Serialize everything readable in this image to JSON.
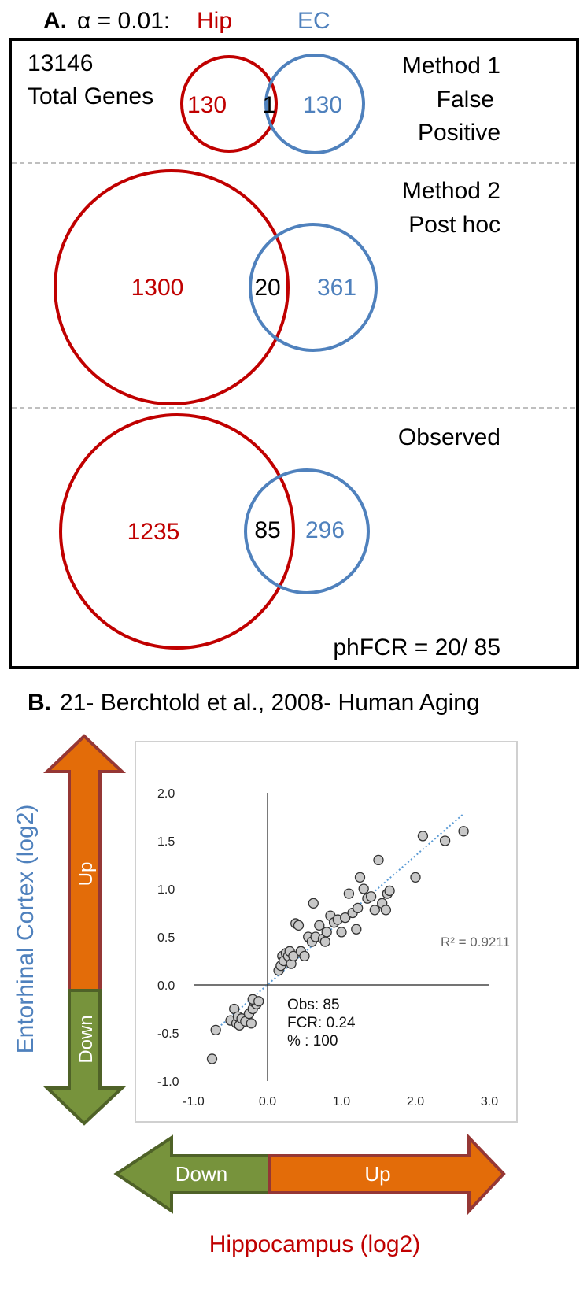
{
  "panel_a": {
    "label": "A.",
    "alpha": "α = 0.01:",
    "hip": "Hip",
    "ec": "EC",
    "total": "13146",
    "total_label": "Total Genes",
    "rows": [
      {
        "title_lines": [
          "Method 1",
          "False",
          "Positive"
        ],
        "hip_only": "130",
        "overlap": "1",
        "ec_only": "130"
      },
      {
        "title_lines": [
          "Method 2",
          "Post hoc"
        ],
        "hip_only": "1300",
        "overlap": "20",
        "ec_only": "361"
      },
      {
        "title_lines": [
          "Observed"
        ],
        "hip_only": "1235",
        "overlap": "85",
        "ec_only": "296"
      }
    ],
    "footnote": "phFCR = 20/ 85"
  },
  "panel_b": {
    "label": "B.",
    "title": "21- Berchtold et al., 2008- Human Aging",
    "y_arrow": {
      "up": "Up",
      "down": "Down",
      "label": "Entorhinal Cortex (log2)"
    },
    "x_arrow": {
      "up": "Up",
      "down": "Down",
      "label": "Hippocampus (log2)"
    }
  },
  "chart_data": {
    "type": "scatter",
    "x": [
      -0.75,
      -0.7,
      -0.5,
      -0.45,
      -0.42,
      -0.4,
      -0.38,
      -0.35,
      -0.3,
      -0.25,
      -0.22,
      -0.2,
      -0.18,
      -0.15,
      -0.2,
      -0.12,
      0.15,
      0.18,
      0.2,
      0.22,
      0.25,
      0.28,
      0.3,
      0.32,
      0.35,
      0.38,
      0.42,
      0.45,
      0.5,
      0.55,
      0.6,
      0.62,
      0.65,
      0.7,
      0.75,
      0.78,
      0.8,
      0.85,
      0.9,
      0.95,
      1.0,
      1.05,
      1.1,
      1.15,
      1.2,
      1.22,
      1.25,
      1.3,
      1.35,
      1.4,
      1.45,
      1.5,
      1.55,
      1.6,
      1.62,
      1.65,
      2.0,
      2.1,
      2.4,
      2.65
    ],
    "values": [
      -0.77,
      -0.47,
      -0.37,
      -0.25,
      -0.4,
      -0.33,
      -0.42,
      -0.35,
      -0.38,
      -0.3,
      -0.4,
      -0.25,
      -0.18,
      -0.2,
      -0.15,
      -0.17,
      0.15,
      0.2,
      0.3,
      0.25,
      0.33,
      0.3,
      0.35,
      0.22,
      0.3,
      0.64,
      0.62,
      0.35,
      0.3,
      0.5,
      0.45,
      0.85,
      0.5,
      0.62,
      0.48,
      0.45,
      0.55,
      0.72,
      0.65,
      0.68,
      0.55,
      0.7,
      0.95,
      0.75,
      0.58,
      0.8,
      1.12,
      1.0,
      0.9,
      0.92,
      0.78,
      1.3,
      0.85,
      0.78,
      0.95,
      0.98,
      1.12,
      1.55,
      1.5,
      1.6
    ],
    "color": "#c8c8c8",
    "trendline_color": "#5b9bd5",
    "xlim": [
      -1,
      3
    ],
    "ylim": [
      -1,
      2
    ],
    "xticks": [
      {
        "value": -1,
        "label": "-1.0"
      },
      {
        "value": 0,
        "label": "0.0"
      },
      {
        "value": 1,
        "label": "1.0"
      },
      {
        "value": 2,
        "label": "2.0"
      },
      {
        "value": 3,
        "label": "3.0"
      }
    ],
    "yticks": [
      {
        "value": -1,
        "label": "-1.0"
      },
      {
        "value": -0.5,
        "label": "-0.5"
      },
      {
        "value": 0,
        "label": "0.0"
      },
      {
        "value": 0.5,
        "label": "0.5"
      },
      {
        "value": 1,
        "label": "1.0"
      },
      {
        "value": 1.5,
        "label": "1.5"
      },
      {
        "value": 2,
        "label": "2.0"
      }
    ],
    "annotations": [
      "Obs: 85",
      "FCR: 0.24",
      "% : 100"
    ],
    "r_squared": "R² = 0.9211"
  }
}
